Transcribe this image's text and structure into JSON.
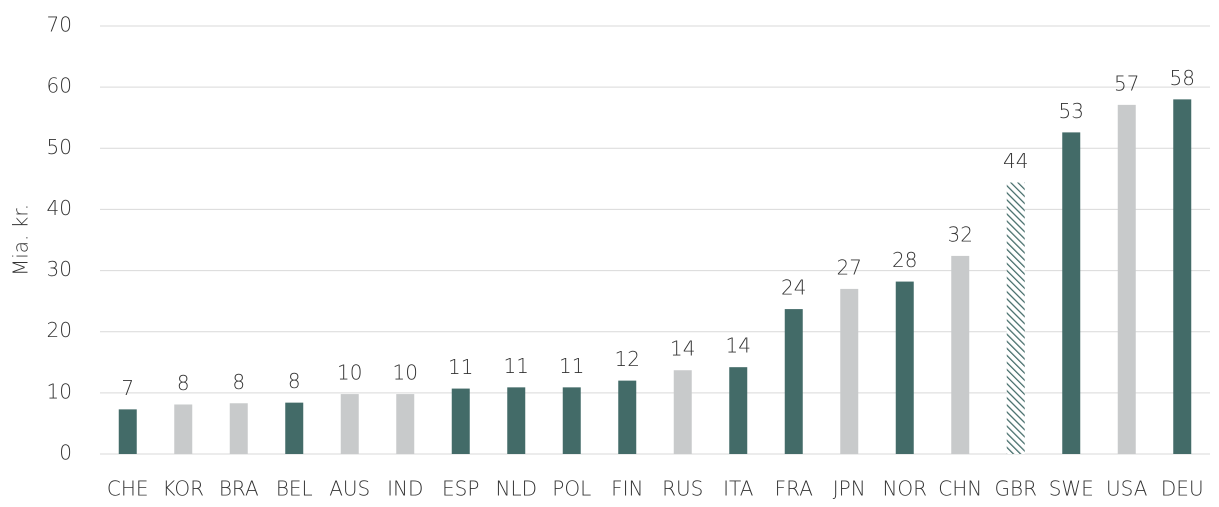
{
  "chart_data": {
    "type": "bar",
    "y_label": "Mia. kr.",
    "categories": [
      "CHE",
      "KOR",
      "BRA",
      "BEL",
      "AUS",
      "IND",
      "ESP",
      "NLD",
      "POL",
      "FIN",
      "RUS",
      "ITA",
      "FRA",
      "JPN",
      "NOR",
      "CHN",
      "GBR",
      "SWE",
      "USA",
      "DEU"
    ],
    "values": [
      7.3,
      8.1,
      8.3,
      8.4,
      9.8,
      9.8,
      10.7,
      10.9,
      10.9,
      12.0,
      13.7,
      14.2,
      23.7,
      27.0,
      28.2,
      32.4,
      44.4,
      52.6,
      57.1,
      58.0
    ],
    "value_labels": [
      "7",
      "8",
      "8",
      "8",
      "10",
      "10",
      "11",
      "11",
      "11",
      "12",
      "14",
      "14",
      "24",
      "27",
      "28",
      "32",
      "44",
      "53",
      "57",
      "58"
    ],
    "colors": [
      "#436b68",
      "#c8cacb",
      "#c8cacb",
      "#436b68",
      "#c8cacb",
      "#c8cacb",
      "#436b68",
      "#436b68",
      "#436b68",
      "#436b68",
      "#c8cacb",
      "#436b68",
      "#436b68",
      "#c8cacb",
      "#436b68",
      "#c8cacb",
      "#436b68",
      "#436b68",
      "#c8cacb",
      "#436b68"
    ],
    "hatched": [
      16
    ],
    "ylim": [
      0,
      70
    ],
    "yticks": [
      0,
      10,
      20,
      30,
      40,
      50,
      60,
      70
    ],
    "grid": true
  }
}
